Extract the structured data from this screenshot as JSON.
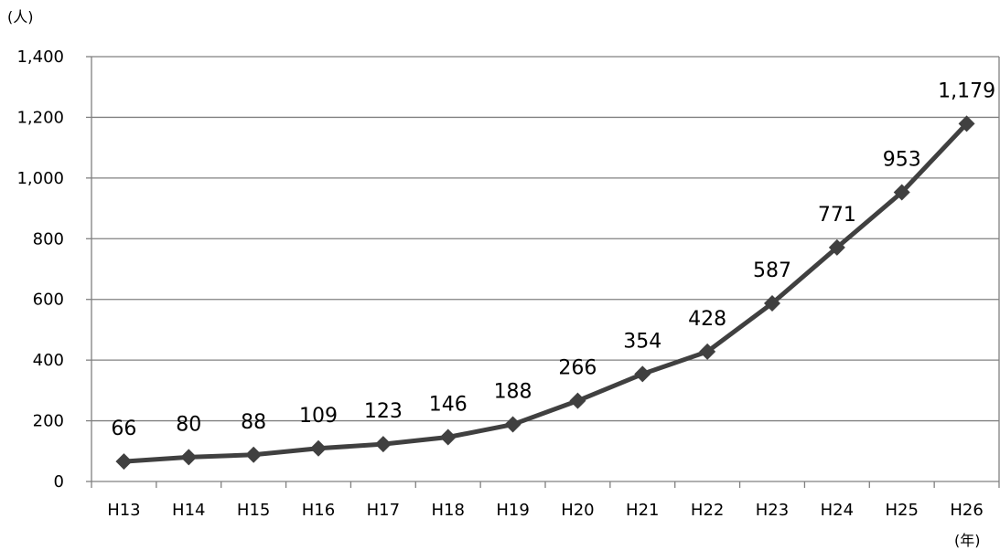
{
  "chart_data": {
    "type": "line",
    "y_unit_label": "(人)",
    "x_unit_label": "(年)",
    "categories": [
      "H13",
      "H14",
      "H15",
      "H16",
      "H17",
      "H18",
      "H19",
      "H20",
      "H21",
      "H22",
      "H23",
      "H24",
      "H25",
      "H26"
    ],
    "series": [
      {
        "values": [
          66,
          80,
          88,
          109,
          123,
          146,
          188,
          266,
          354,
          428,
          587,
          771,
          953,
          1179
        ],
        "data_labels": [
          "66",
          "80",
          "88",
          "109",
          "123",
          "146",
          "188",
          "266",
          "354",
          "428",
          "587",
          "771",
          "953",
          "1,179"
        ],
        "color": "#404040",
        "marker": "diamond"
      }
    ],
    "ylim": [
      0,
      1400
    ],
    "y_ticks": [
      0,
      200,
      400,
      600,
      800,
      1000,
      1200,
      1400
    ],
    "y_tick_labels": [
      "0",
      "200",
      "400",
      "600",
      "800",
      "1,000",
      "1,200",
      "1,400"
    ],
    "grid": "horizontal",
    "legend": "none"
  }
}
